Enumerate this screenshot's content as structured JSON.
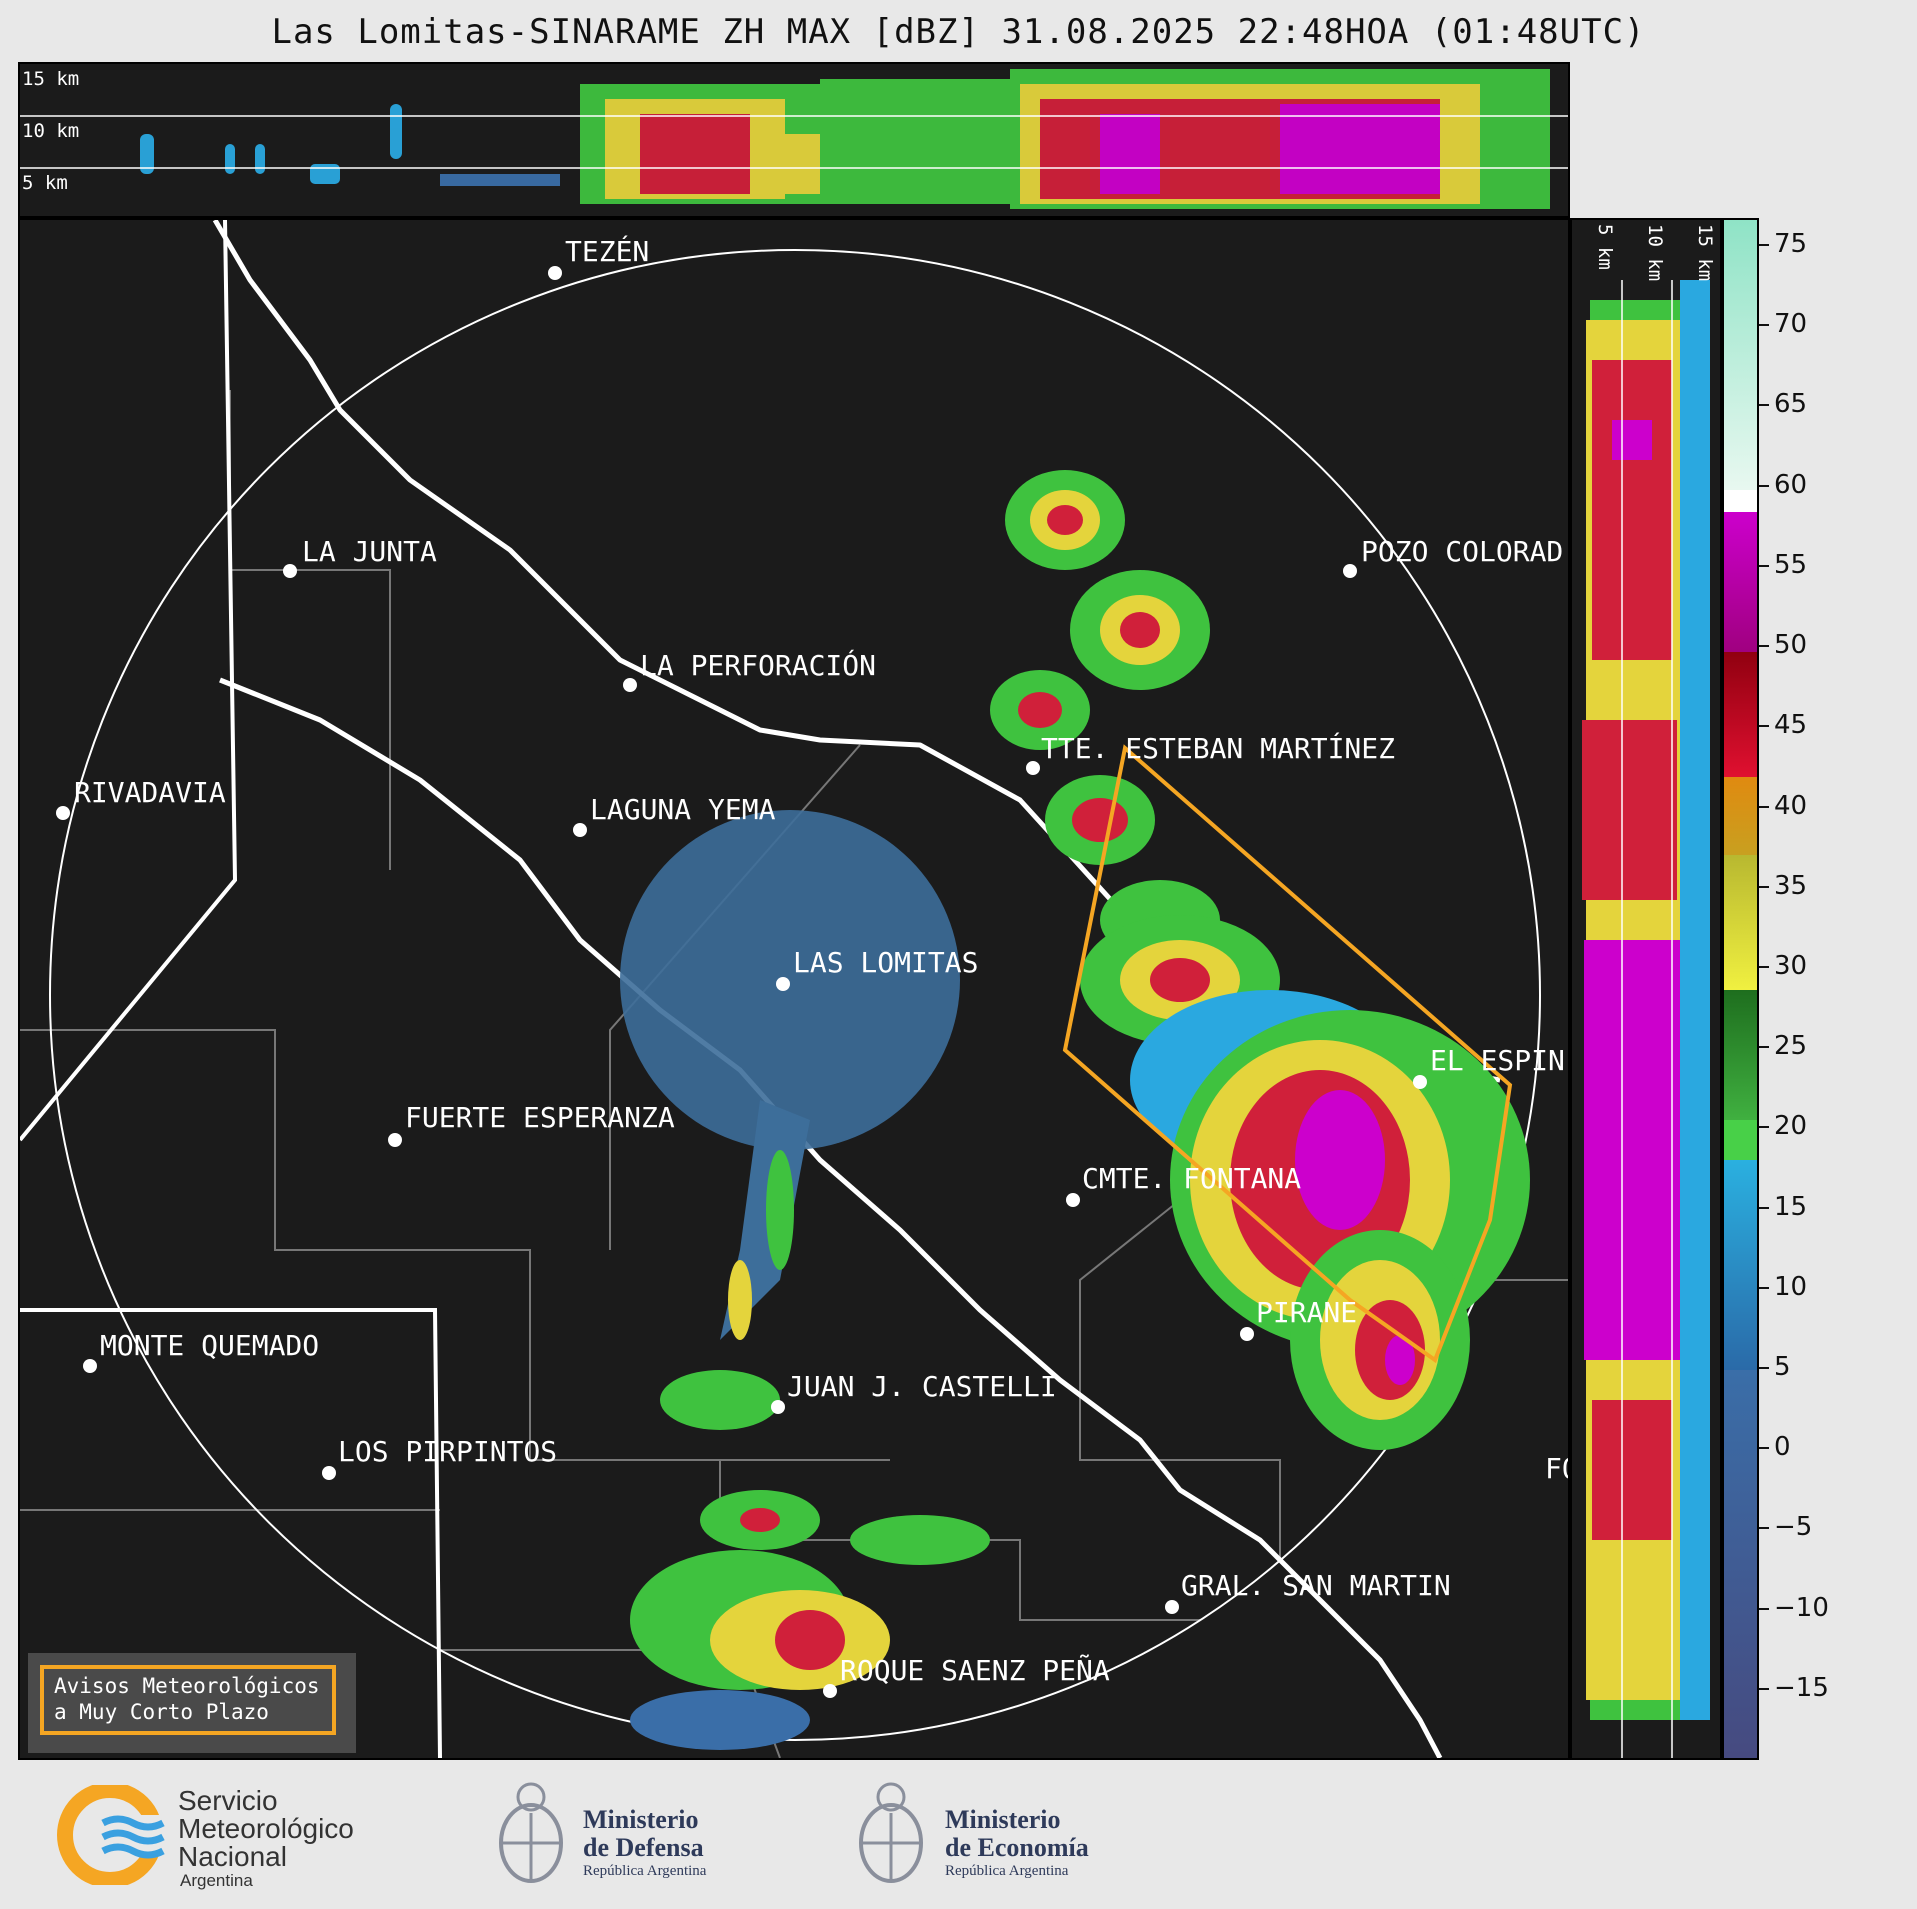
{
  "title": "Las Lomitas-SINARAME ZH MAX [dBZ] 31.08.2025 22:48HOA (01:48UTC)",
  "top_panel": {
    "km_labels": [
      "15 km",
      "10 km",
      "5 km"
    ]
  },
  "side_panel": {
    "km_labels": [
      "5 km",
      "10 km",
      "15 km"
    ]
  },
  "cities": [
    {
      "name": "TEZÉN"
    },
    {
      "name": "LA JUNTA"
    },
    {
      "name": "POZO COLORAD"
    },
    {
      "name": "LA PERFORACIÓN"
    },
    {
      "name": "TTE. ESTEBAN MARTÍNEZ"
    },
    {
      "name": "RIVADAVIA"
    },
    {
      "name": "LAGUNA YEMA"
    },
    {
      "name": "LAS LOMITAS"
    },
    {
      "name": "EL ESPIN"
    },
    {
      "name": "FUERTE ESPERANZA"
    },
    {
      "name": "CMTE. FONTANA"
    },
    {
      "name": "PIRANE"
    },
    {
      "name": "MONTE QUEMADO"
    },
    {
      "name": "JUAN J. CASTELLI"
    },
    {
      "name": "LOS PIRPINTOS"
    },
    {
      "name": "GRAL. SAN MARTIN"
    },
    {
      "name": "ROQUE SAENZ PEÑA"
    },
    {
      "name": "FO"
    }
  ],
  "colorbar": {
    "unit": "dBZ",
    "ticks": [
      "75",
      "70",
      "65",
      "60",
      "55",
      "50",
      "45",
      "40",
      "35",
      "30",
      "25",
      "20",
      "15",
      "10",
      "5",
      "0",
      "−5",
      "−10",
      "−15"
    ],
    "colors": [
      "#8fe3c6",
      "#ffffff",
      "#cc00cc",
      "#d00030",
      "#e08a10",
      "#e8e840",
      "#2e8b2e",
      "#48d048",
      "#2aa8e0",
      "#3a6ea8",
      "#464a80"
    ]
  },
  "notice": {
    "line1": "Avisos Meteorológicos",
    "line2": "a Muy Corto Plazo"
  },
  "logos": {
    "smn": {
      "line1": "Servicio",
      "line2": "Meteorológico",
      "line3": "Nacional",
      "line4": "Argentina"
    },
    "defensa": {
      "line1": "Ministerio",
      "line2": "de Defensa",
      "line3": "República Argentina"
    },
    "economia": {
      "line1": "Ministerio",
      "line2": "de Economía",
      "line3": "República Argentina"
    }
  }
}
